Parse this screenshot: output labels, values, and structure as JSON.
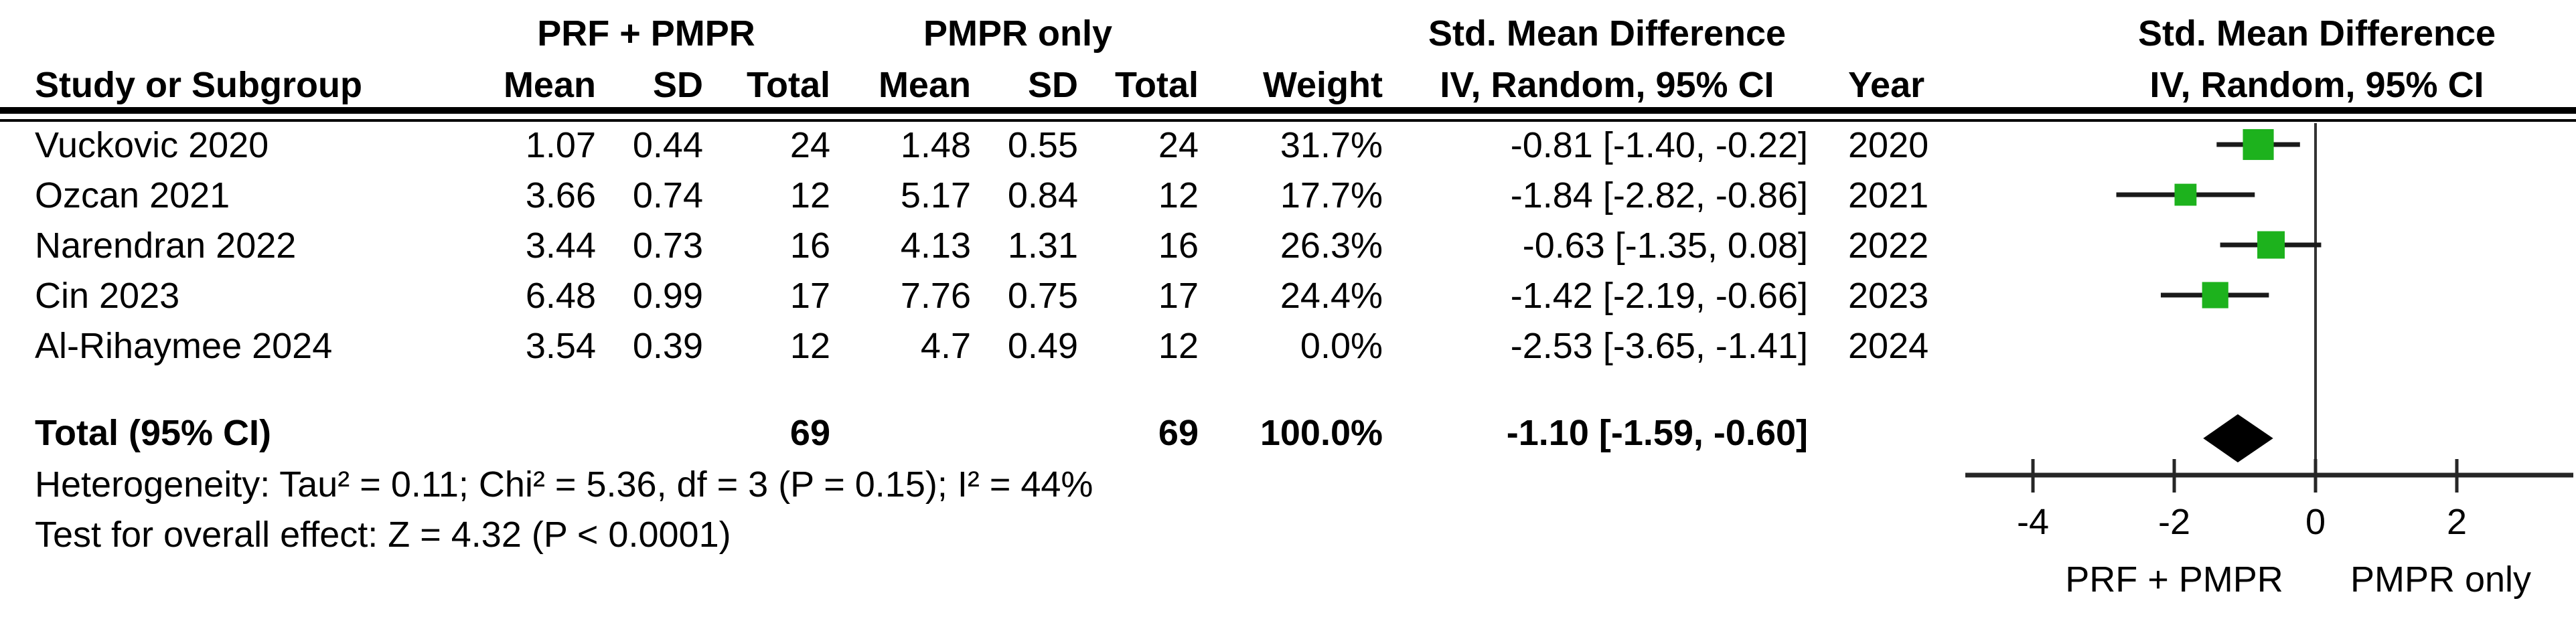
{
  "table": {
    "group_headers": {
      "group1": "PRF + PMPR",
      "group2": "PMPR only",
      "effect": "Std. Mean Difference",
      "plot_effect": "Std. Mean Difference"
    },
    "columns": {
      "study": "Study or Subgroup",
      "mean": "Mean",
      "sd": "SD",
      "total": "Total",
      "weight": "Weight",
      "method": "IV, Random, 95% CI",
      "year": "Year",
      "plot_method": "IV, Random, 95% CI"
    },
    "rows": [
      {
        "study": "Vuckovic 2020",
        "mean1": "1.07",
        "sd1": "0.44",
        "total1": "24",
        "mean2": "1.48",
        "sd2": "0.55",
        "total2": "24",
        "weight": "31.7%",
        "ci": "-0.81 [-1.40, -0.22]",
        "year": "2020"
      },
      {
        "study": "Ozcan 2021",
        "mean1": "3.66",
        "sd1": "0.74",
        "total1": "12",
        "mean2": "5.17",
        "sd2": "0.84",
        "total2": "12",
        "weight": "17.7%",
        "ci": "-1.84 [-2.82, -0.86]",
        "year": "2021"
      },
      {
        "study": "Narendran 2022",
        "mean1": "3.44",
        "sd1": "0.73",
        "total1": "16",
        "mean2": "4.13",
        "sd2": "1.31",
        "total2": "16",
        "weight": "26.3%",
        "ci": "-0.63 [-1.35, 0.08]",
        "year": "2022"
      },
      {
        "study": "Cin 2023",
        "mean1": "6.48",
        "sd1": "0.99",
        "total1": "17",
        "mean2": "7.76",
        "sd2": "0.75",
        "total2": "17",
        "weight": "24.4%",
        "ci": "-1.42 [-2.19, -0.66]",
        "year": "2023"
      },
      {
        "study": "Al-Rihaymee 2024",
        "mean1": "3.54",
        "sd1": "0.39",
        "total1": "12",
        "mean2": "4.7",
        "sd2": "0.49",
        "total2": "12",
        "weight": "0.0%",
        "ci": "-2.53 [-3.65, -1.41]",
        "year": "2024"
      }
    ],
    "total_row": {
      "label": "Total (95% CI)",
      "total1": "69",
      "total2": "69",
      "weight": "100.0%",
      "ci": "-1.10 [-1.59, -0.60]"
    },
    "footer": {
      "heterogeneity": "Heterogeneity: Tau² = 0.11; Chi² = 5.36, df = 3 (P = 0.15); I² = 44%",
      "overall_effect": "Test for overall effect: Z = 4.32 (P < 0.0001)"
    }
  },
  "chart_data": {
    "type": "forest",
    "title": "Std. Mean Difference",
    "method": "IV, Random, 95% CI",
    "studies": [
      {
        "name": "Vuckovic 2020",
        "year": 2020,
        "smd": -0.81,
        "ci": [
          -1.4,
          -0.22
        ],
        "weight_pct": 31.7
      },
      {
        "name": "Ozcan 2021",
        "year": 2021,
        "smd": -1.84,
        "ci": [
          -2.82,
          -0.86
        ],
        "weight_pct": 17.7
      },
      {
        "name": "Narendran 2022",
        "year": 2022,
        "smd": -0.63,
        "ci": [
          -1.35,
          0.08
        ],
        "weight_pct": 26.3
      },
      {
        "name": "Cin 2023",
        "year": 2023,
        "smd": -1.42,
        "ci": [
          -2.19,
          -0.66
        ],
        "weight_pct": 24.4
      },
      {
        "name": "Al-Rihaymee 2024",
        "year": 2024,
        "smd": -2.53,
        "ci": [
          -3.65,
          -1.41
        ],
        "weight_pct": 0.0
      }
    ],
    "total": {
      "label": "Total (95% CI)",
      "smd": -1.1,
      "ci": [
        -1.59,
        -0.6
      ]
    },
    "axis_ticks": [
      -4,
      -2,
      0,
      2
    ],
    "axis_range": [
      -4.9,
      3.6
    ],
    "left_label": "PRF + PMPR",
    "right_label": "PMPR only",
    "marker_color": "#1DB21D",
    "line_color": "#1a1a1a",
    "diamond_color": "#000000"
  }
}
